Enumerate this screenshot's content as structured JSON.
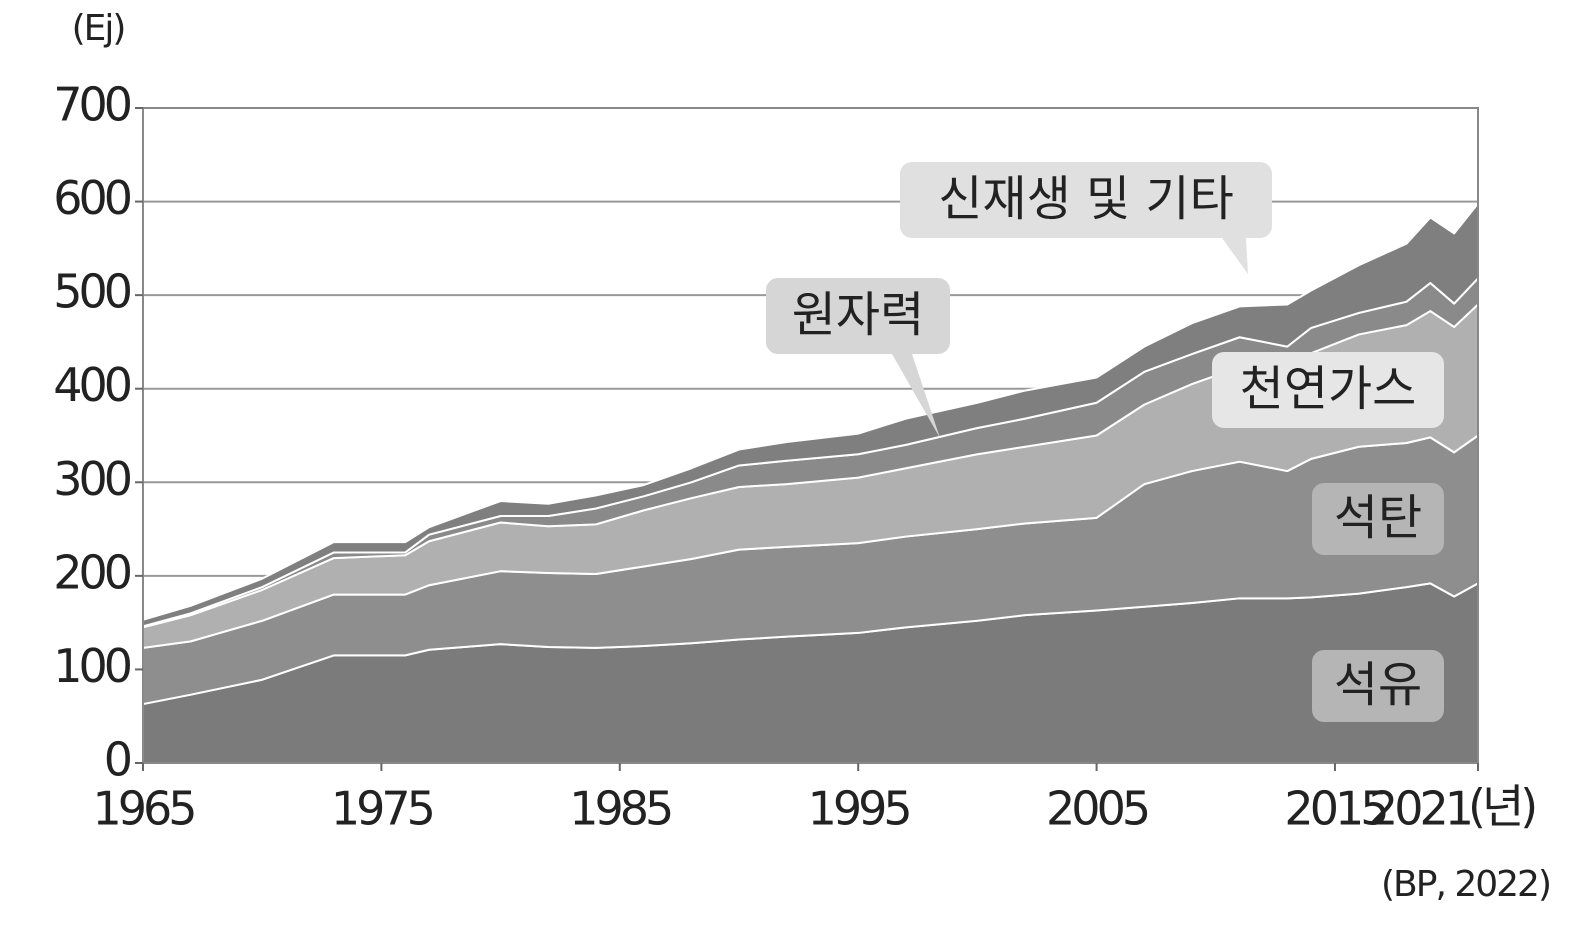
{
  "chart_data": {
    "type": "stacked-area",
    "y_label": "(Ej)",
    "x_label": "(년)",
    "source": "(BP, 2022)",
    "x": [
      1965,
      1967,
      1970,
      1973,
      1976,
      1977,
      1980,
      1982,
      1984,
      1986,
      1988,
      1990,
      1992,
      1995,
      1997,
      2000,
      2002,
      2005,
      2007,
      2009,
      2011,
      2013,
      2014,
      2016,
      2018,
      2019,
      2020,
      2021
    ],
    "series": [
      {
        "name": "석유",
        "color": "#7b7b7b",
        "values": [
          63,
          73,
          89,
          115,
          115,
          121,
          127,
          124,
          123,
          125,
          128,
          132,
          135,
          139,
          145,
          152,
          158,
          163,
          167,
          171,
          176,
          176,
          177,
          181,
          188,
          192,
          178,
          192
        ]
      },
      {
        "name": "석탄",
        "color": "#8e8e8e",
        "values": [
          60,
          57,
          63,
          65,
          65,
          69,
          78,
          79,
          79,
          85,
          90,
          96,
          96,
          96,
          97,
          98,
          98,
          99,
          131,
          141,
          146,
          136,
          148,
          157,
          154,
          156,
          154,
          158
        ]
      },
      {
        "name": "천연가스",
        "color": "#b0b0b0",
        "values": [
          22,
          28,
          33,
          39,
          42,
          47,
          52,
          50,
          53,
          60,
          65,
          67,
          67,
          70,
          73,
          80,
          82,
          88,
          85,
          93,
          101,
          103,
          113,
          120,
          126,
          135,
          134,
          140
        ]
      },
      {
        "name": "원자력",
        "color": "#8a8a8a",
        "values": [
          1,
          2,
          3,
          6,
          3,
          7,
          7,
          11,
          17,
          15,
          17,
          23,
          25,
          25,
          25,
          28,
          30,
          35,
          35,
          32,
          32,
          30,
          27,
          23,
          25,
          30,
          25,
          28
        ]
      },
      {
        "name": "신재생 및 기타",
        "color": "#7f7f7f",
        "values": [
          7,
          8,
          9,
          11,
          11,
          8,
          16,
          13,
          14,
          12,
          15,
          17,
          20,
          22,
          28,
          27,
          30,
          27,
          27,
          33,
          33,
          45,
          40,
          51,
          62,
          70,
          75,
          80
        ]
      }
    ],
    "xlim": [
      1965,
      2021
    ],
    "xticks": [
      1965,
      1975,
      1985,
      1995,
      2005,
      2015,
      2021
    ],
    "ylim": [
      0,
      700
    ],
    "yticks": [
      0,
      100,
      200,
      300,
      400,
      500,
      600,
      700
    ],
    "grid": true
  }
}
